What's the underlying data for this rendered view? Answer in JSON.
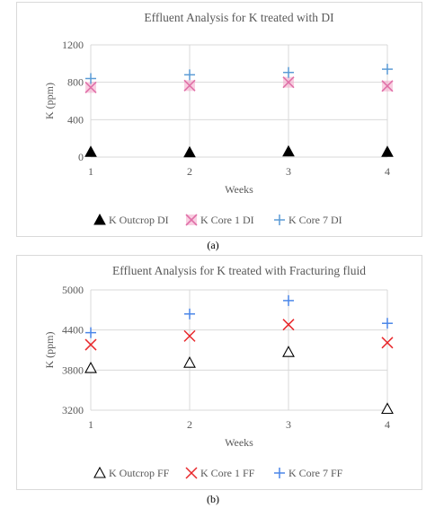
{
  "chart_data": [
    {
      "type": "scatter",
      "title": "Effluent Analysis for K treated with DI",
      "xlabel": "Weeks",
      "ylabel": "K (ppm)",
      "x": [
        1,
        2,
        3,
        4
      ],
      "x_ticks": [
        "1",
        "2",
        "3",
        "4"
      ],
      "ylim": [
        0,
        1200
      ],
      "y_ticks": [
        "0",
        "400",
        "800",
        "1200"
      ],
      "grid": true,
      "legend": "bottom",
      "series": [
        {
          "name": "K Outcrop DI",
          "marker": "triangle-filled",
          "color": "#000000",
          "values": [
            55,
            50,
            60,
            55
          ]
        },
        {
          "name": "K Core 1 DI",
          "marker": "x-box",
          "color": "#f4a6c8",
          "values": [
            745,
            765,
            800,
            760
          ]
        },
        {
          "name": "K Core 7 DI",
          "marker": "plus",
          "color": "#5b9bd5",
          "values": [
            840,
            880,
            905,
            940
          ]
        }
      ],
      "panel_label": "(a)"
    },
    {
      "type": "scatter",
      "title": "Effluent Analysis for K treated with Fracturing fluid",
      "xlabel": "Weeks",
      "ylabel": "K (ppm)",
      "x": [
        1,
        2,
        3,
        4
      ],
      "x_ticks": [
        "1",
        "2",
        "3",
        "4"
      ],
      "ylim": [
        3200,
        5000
      ],
      "y_ticks": [
        "3200",
        "3800",
        "4400",
        "5000"
      ],
      "grid": true,
      "legend": "bottom",
      "series": [
        {
          "name": "K Outcrop FF",
          "marker": "triangle-open",
          "color": "#000000",
          "values": [
            3830,
            3910,
            4070,
            3220
          ]
        },
        {
          "name": "K Core 1 FF",
          "marker": "x",
          "color": "#e8272b",
          "values": [
            4180,
            4310,
            4480,
            4210
          ]
        },
        {
          "name": "K Core 7 FF",
          "marker": "plus",
          "color": "#4a86e8",
          "values": [
            4360,
            4640,
            4840,
            4500
          ]
        }
      ],
      "panel_label": "(b)"
    }
  ]
}
